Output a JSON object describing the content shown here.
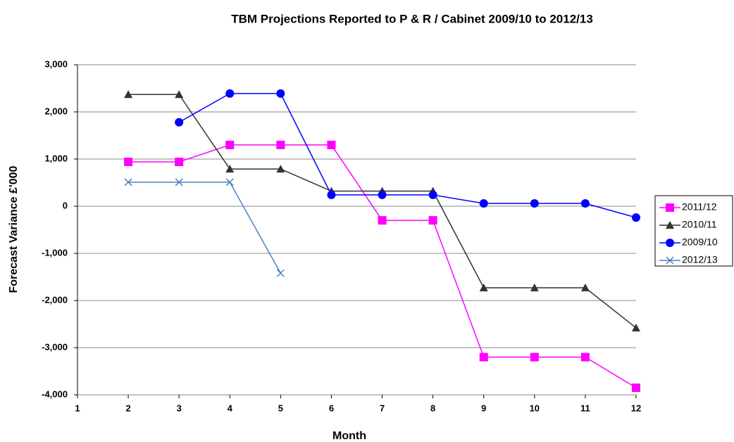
{
  "chart_data": {
    "type": "line",
    "title": "TBM Projections Reported to  P & R / Cabinet 2009/10 to 2012/13",
    "x_label": "Month",
    "y_label": "Forecast Variance £'000",
    "x": [
      1,
      2,
      3,
      4,
      5,
      6,
      7,
      8,
      9,
      10,
      11,
      12
    ],
    "xlim": [
      1,
      12
    ],
    "xticks": [
      1,
      2,
      3,
      4,
      5,
      6,
      7,
      8,
      9,
      10,
      11,
      12
    ],
    "ylim": [
      -4000,
      3000
    ],
    "yticks": [
      {
        "value": -4000,
        "label": "-4,000"
      },
      {
        "value": -3000,
        "label": "-3,000"
      },
      {
        "value": -2000,
        "label": "-2,000"
      },
      {
        "value": -1000,
        "label": "-1,000"
      },
      0,
      {
        "value": 1000,
        "label": "1,000"
      },
      {
        "value": 2000,
        "label": "2,000"
      },
      {
        "value": 3000,
        "label": "3,000"
      }
    ],
    "grid": true,
    "legend": "right",
    "series": [
      {
        "name": "2011/12",
        "color": "#ff00ff",
        "marker": "square",
        "values": [
          null,
          940,
          940,
          1300,
          1300,
          1300,
          -300,
          -300,
          -3200,
          -3200,
          -3200,
          -3850
        ]
      },
      {
        "name": "2010/11",
        "color": "#333333",
        "marker": "triangle",
        "values": [
          null,
          2370,
          2370,
          790,
          790,
          320,
          320,
          320,
          -1730,
          -1730,
          -1730,
          -2580
        ]
      },
      {
        "name": "2009/10",
        "color": "#0000ff",
        "marker": "circle",
        "values": [
          null,
          null,
          1780,
          2390,
          2390,
          240,
          240,
          240,
          60,
          60,
          60,
          -240
        ]
      },
      {
        "name": "2012/13",
        "color": "#4f81bd",
        "marker": "x",
        "values": [
          null,
          510,
          510,
          510,
          -1420,
          null,
          null,
          null,
          null,
          null,
          null,
          null
        ]
      }
    ]
  }
}
